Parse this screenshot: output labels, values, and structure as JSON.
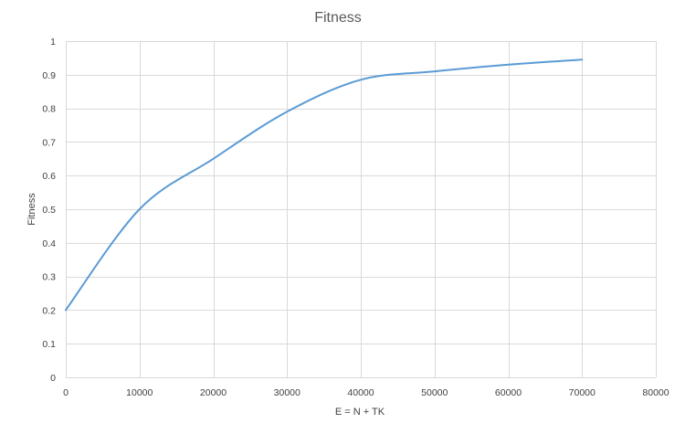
{
  "chart_data": {
    "type": "line",
    "title": "Fitness",
    "xlabel": "E = N + TK",
    "ylabel": "Fitness",
    "xlim": [
      0,
      80000
    ],
    "ylim": [
      0,
      1
    ],
    "xticks": [
      0,
      10000,
      20000,
      30000,
      40000,
      50000,
      60000,
      70000,
      80000
    ],
    "yticks": [
      0,
      0.1,
      0.2,
      0.3,
      0.4,
      0.5,
      0.6,
      0.7,
      0.8,
      0.9,
      1
    ],
    "grid": true,
    "smooth": true,
    "series": [
      {
        "color": "#5b9bd5",
        "x": [
          0,
          10000,
          20000,
          30000,
          40000,
          50000,
          60000,
          70000
        ],
        "values": [
          0.2,
          0.5,
          0.65,
          0.79,
          0.885,
          0.91,
          0.93,
          0.945
        ]
      }
    ]
  },
  "colors": {
    "gridline": "#d9d9d9",
    "axis": "#d9d9d9",
    "series": "#5b9bd5"
  }
}
